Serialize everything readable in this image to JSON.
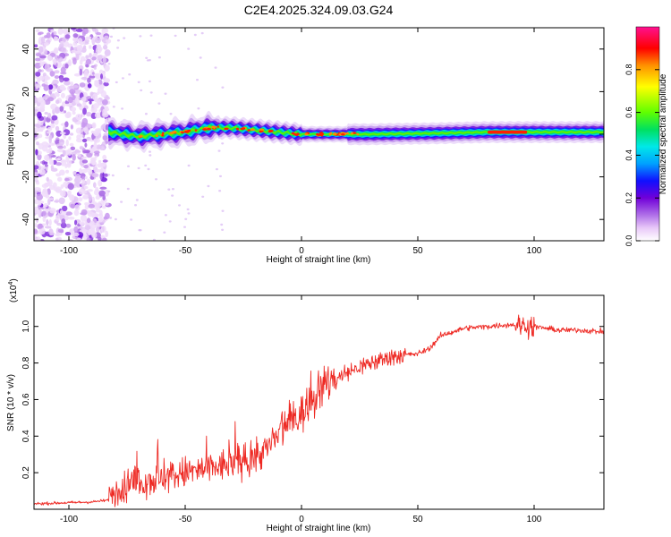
{
  "figure": {
    "title": "C2E4.2025.324.09.03.G24"
  },
  "colors": {
    "snr_line": "#ee2a24",
    "axis": "#000000",
    "colormap": [
      "#ffffff",
      "#e8c8f8",
      "#b070e8",
      "#7000d8",
      "#1010ff",
      "#00a0ff",
      "#00e8e8",
      "#00e060",
      "#60ff00",
      "#ffff00",
      "#ff9000",
      "#ff0000",
      "#ff1090"
    ]
  },
  "chart_data": [
    {
      "type": "heatmap",
      "title": "C2E4.2025.324.09.03.G24",
      "xlabel": "Height of straight line (km)",
      "ylabel": "Frequency (Hz)",
      "xlim": [
        -115,
        130
      ],
      "ylim": [
        -50,
        50
      ],
      "xticks": [
        -100,
        -50,
        0,
        50,
        100
      ],
      "yticks": [
        -40,
        -20,
        0,
        20,
        40
      ],
      "colorbar": {
        "label": "Normalized spectral amplitude",
        "range": [
          0.0,
          1.0
        ],
        "ticks": [
          "0.0",
          "0.2",
          "0.4",
          "0.6",
          "0.8"
        ]
      },
      "description_values": {
        "noise_region_x": [
          -115,
          -83
        ],
        "signal_start_x": -83,
        "signal_center_hz": [
          [
            -83,
            1
          ],
          [
            -70,
            -1
          ],
          [
            -60,
            0
          ],
          [
            -50,
            1
          ],
          [
            -40,
            3
          ],
          [
            -30,
            3
          ],
          [
            -20,
            2
          ],
          [
            -10,
            1
          ],
          [
            0,
            0
          ],
          [
            10,
            0
          ],
          [
            30,
            0
          ],
          [
            60,
            0.5
          ],
          [
            80,
            1
          ],
          [
            95,
            1
          ],
          [
            100,
            1
          ],
          [
            130,
            1
          ]
        ],
        "peak_band_x": [
          80,
          97
        ]
      }
    },
    {
      "type": "line",
      "xlabel": "Height of straight line (km)",
      "ylabel": "SNR (10 * v/v)",
      "yscale_note": "(x10",
      "yscale_exp": "4",
      "yscale_suffix": ")",
      "xlim": [
        -115,
        130
      ],
      "ylim": [
        0,
        1.17
      ],
      "xticks": [
        -100,
        -50,
        0,
        50,
        100
      ],
      "yticks": [
        "0.2",
        "0.4",
        "0.6",
        "0.8",
        "1.0"
      ],
      "series": [
        {
          "trend": [
            [
              -115,
              0.03
            ],
            [
              -90,
              0.04
            ],
            [
              -83,
              0.05
            ],
            [
              -80,
              0.1
            ],
            [
              -70,
              0.15
            ],
            [
              -60,
              0.17
            ],
            [
              -50,
              0.2
            ],
            [
              -40,
              0.22
            ],
            [
              -30,
              0.25
            ],
            [
              -20,
              0.28
            ],
            [
              -15,
              0.33
            ],
            [
              -10,
              0.4
            ],
            [
              -5,
              0.48
            ],
            [
              0,
              0.52
            ],
            [
              5,
              0.6
            ],
            [
              10,
              0.68
            ],
            [
              20,
              0.75
            ],
            [
              30,
              0.8
            ],
            [
              40,
              0.84
            ],
            [
              50,
              0.85
            ],
            [
              55,
              0.88
            ],
            [
              60,
              0.95
            ],
            [
              70,
              0.99
            ],
            [
              80,
              1.0
            ],
            [
              90,
              1.01
            ],
            [
              100,
              1.0
            ],
            [
              110,
              0.98
            ],
            [
              120,
              0.98
            ],
            [
              130,
              0.97
            ]
          ]
        }
      ]
    }
  ]
}
